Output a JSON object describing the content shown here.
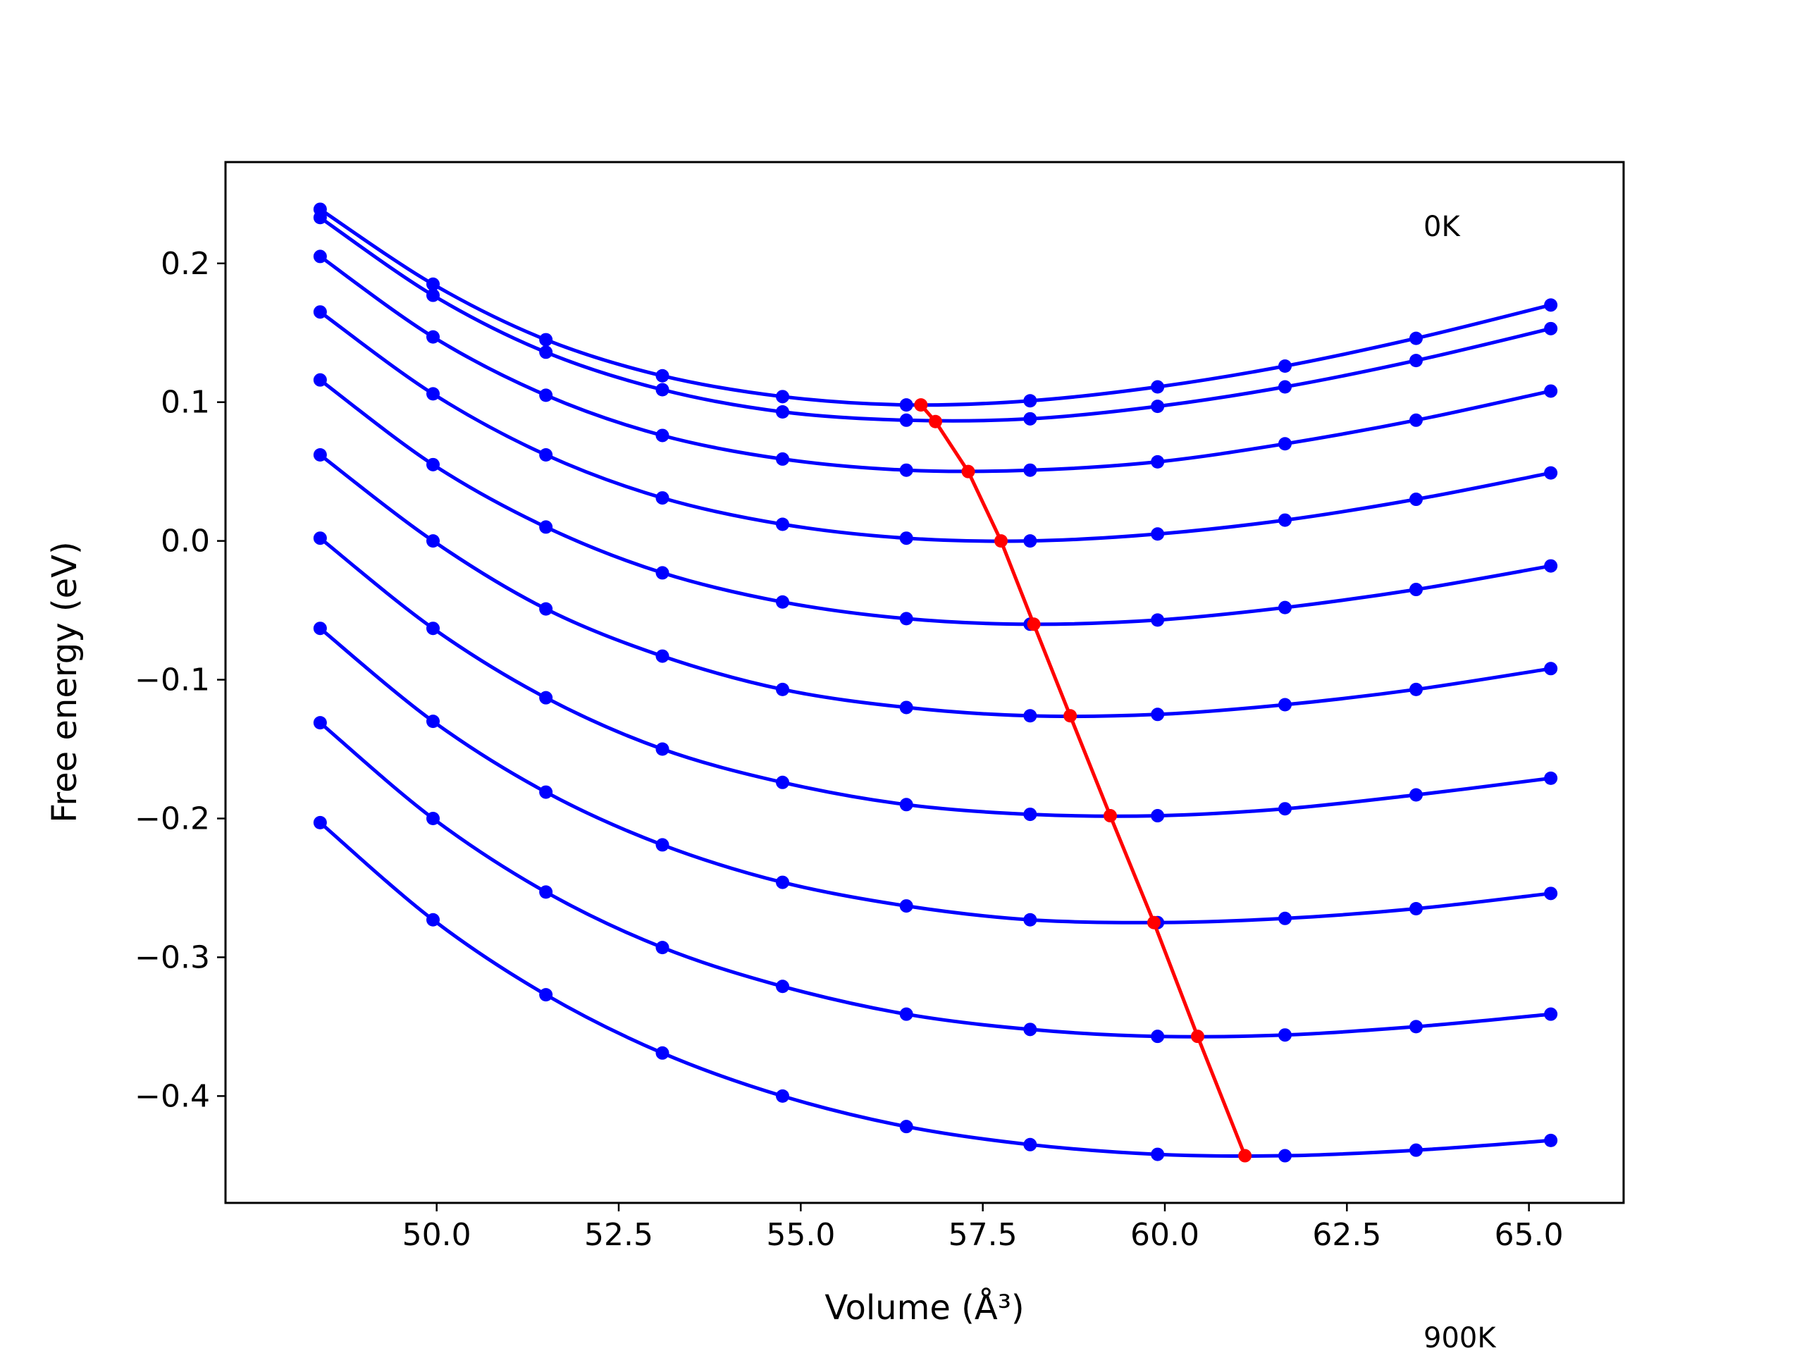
{
  "chart_data": {
    "type": "line",
    "xlabel": "Volume (Å³)",
    "ylabel": "Free energy (eV)",
    "xlim": [
      47.1,
      66.3
    ],
    "ylim": [
      -0.477,
      0.273
    ],
    "x_ticks": [
      50.0,
      52.5,
      55.0,
      57.5,
      60.0,
      62.5,
      65.0
    ],
    "x_tick_labels": [
      "50.0",
      "52.5",
      "55.0",
      "57.5",
      "60.0",
      "62.5",
      "65.0"
    ],
    "y_ticks": [
      0.2,
      0.1,
      0.0,
      -0.1,
      -0.2,
      -0.3,
      -0.4
    ],
    "y_tick_labels": [
      "0.2",
      "0.1",
      "0.0",
      "−0.1",
      "−0.2",
      "−0.3",
      "−0.4"
    ],
    "grid": false,
    "annotations": {
      "top": "0K",
      "bottom": "900K"
    },
    "x": [
      48.4,
      49.95,
      51.5,
      53.1,
      54.75,
      56.45,
      58.15,
      59.9,
      61.65,
      63.45,
      65.3
    ],
    "series": [
      {
        "values": [
          0.239,
          0.185,
          0.145,
          0.119,
          0.104,
          0.098,
          0.101,
          0.111,
          0.126,
          0.146,
          0.17
        ]
      },
      {
        "values": [
          0.233,
          0.177,
          0.136,
          0.109,
          0.093,
          0.087,
          0.088,
          0.097,
          0.111,
          0.13,
          0.153
        ]
      },
      {
        "values": [
          0.205,
          0.147,
          0.105,
          0.076,
          0.059,
          0.051,
          0.051,
          0.057,
          0.07,
          0.087,
          0.108
        ]
      },
      {
        "values": [
          0.165,
          0.106,
          0.062,
          0.031,
          0.012,
          0.002,
          0.0,
          0.005,
          0.015,
          0.03,
          0.049
        ]
      },
      {
        "values": [
          0.116,
          0.055,
          0.01,
          -0.023,
          -0.044,
          -0.056,
          -0.06,
          -0.057,
          -0.048,
          -0.035,
          -0.018
        ]
      },
      {
        "values": [
          0.062,
          0.0,
          -0.049,
          -0.083,
          -0.107,
          -0.12,
          -0.126,
          -0.125,
          -0.118,
          -0.107,
          -0.092
        ]
      },
      {
        "values": [
          0.002,
          -0.063,
          -0.113,
          -0.15,
          -0.174,
          -0.19,
          -0.197,
          -0.198,
          -0.193,
          -0.183,
          -0.171
        ]
      },
      {
        "values": [
          -0.063,
          -0.13,
          -0.181,
          -0.219,
          -0.246,
          -0.263,
          -0.273,
          -0.275,
          -0.272,
          -0.265,
          -0.254
        ]
      },
      {
        "values": [
          -0.131,
          -0.2,
          -0.253,
          -0.293,
          -0.321,
          -0.341,
          -0.352,
          -0.357,
          -0.356,
          -0.35,
          -0.341
        ]
      },
      {
        "values": [
          -0.203,
          -0.273,
          -0.327,
          -0.369,
          -0.4,
          -0.422,
          -0.435,
          -0.442,
          -0.443,
          -0.439,
          -0.432
        ]
      }
    ],
    "minimum_path": {
      "x": [
        56.65,
        56.85,
        57.3,
        57.75,
        58.2,
        58.7,
        59.25,
        59.85,
        60.45,
        61.1
      ],
      "y": [
        0.098,
        0.086,
        0.05,
        0.0,
        -0.06,
        -0.126,
        -0.198,
        -0.275,
        -0.357,
        -0.443
      ]
    },
    "colors": {
      "curves": "#0000ff",
      "minimum_path": "#ff0000"
    }
  }
}
